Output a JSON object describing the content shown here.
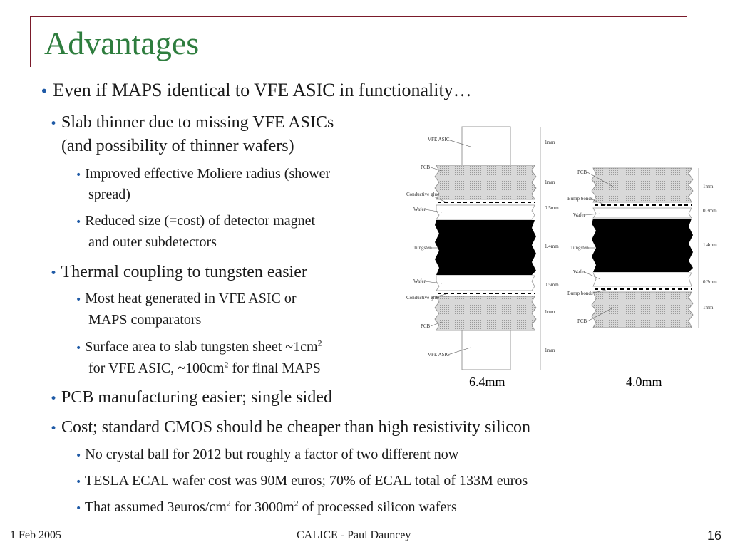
{
  "slide": {
    "title": "Advantages",
    "bullets": {
      "main": "Even if MAPS identical to VFE ASIC in functionality…",
      "slab": "Slab thinner due to missing VFE ASICs",
      "slab_line2": "(and possibility of thinner wafers)",
      "moliere": "Improved effective Moliere radius (shower",
      "moliere_line2": "spread)",
      "magnet": "Reduced size (=cost) of detector magnet",
      "magnet_line2": "and outer subdetectors",
      "thermal": "Thermal coupling to tungsten easier",
      "heat": "Most heat generated in VFE ASIC or",
      "heat_line2": "MAPS comparators",
      "surface_a": "Surface area to slab tungsten sheet ~1cm",
      "surface_b": "for VFE ASIC, ~100cm",
      "surface_c": " for final MAPS",
      "pcb": "PCB manufacturing easier; single sided",
      "cost": "Cost; standard CMOS should be cheaper than high resistivity silicon",
      "crystal": "No crystal ball for 2012 but roughly a factor of two different now",
      "tesla": "TESLA ECAL wafer cost was 90M euros; 70% of ECAL total of 133M euros",
      "assumed_a": "That assumed 3euros/cm",
      "assumed_b": " for 3000m",
      "assumed_c": " of processed silicon wafers",
      "sup2": "2"
    }
  },
  "diagram": {
    "left": {
      "labels": [
        "VFE ASIC",
        "PCB",
        "Conductive glue",
        "Wafer",
        "Tungsten",
        "Wafer",
        "Conductive glue",
        "PCB",
        "VFE ASIC"
      ],
      "dims": [
        "1mm",
        "1mm",
        "0.5mm",
        "1.4mm",
        "0.5mm",
        "1mm",
        "1mm"
      ],
      "total": "6.4mm"
    },
    "right": {
      "labels": [
        "PCB",
        "Bump bonds",
        "Wafer",
        "Tungsten",
        "Wafer",
        "Bump bonds",
        "PCB"
      ],
      "dims": [
        "1mm",
        "0.3mm",
        "1.4mm",
        "0.3mm",
        "1mm"
      ],
      "total": "4.0mm"
    },
    "colors": {
      "pcb": "#d4d4d4",
      "tungsten": "#000000",
      "asic": "#ffffff"
    }
  },
  "footer": {
    "date": "1 Feb 2005",
    "center": "CALICE - Paul Dauncey",
    "page": "16"
  },
  "theme": {
    "title_color": "#2e7d3e",
    "frame_color": "#7a1a2a",
    "bullet_color": "#1f5aa6"
  }
}
